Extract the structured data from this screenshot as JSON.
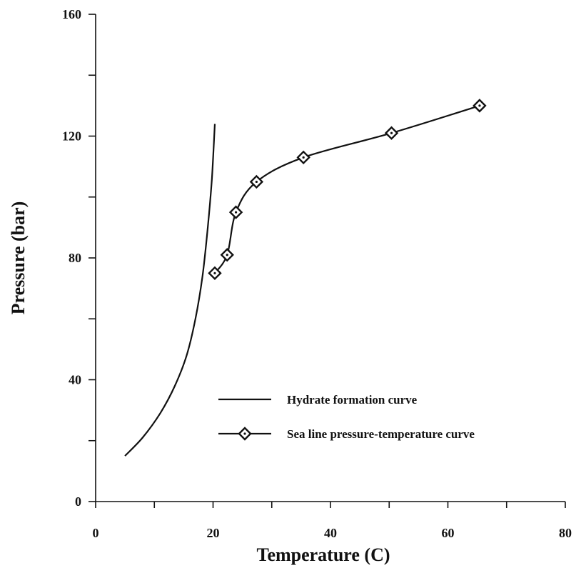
{
  "chart_data": {
    "type": "line",
    "xlabel": "Temperature (C)",
    "ylabel": "Pressure (bar)",
    "xlim": [
      0,
      80
    ],
    "ylim": [
      0,
      160
    ],
    "x_ticks": [
      0,
      20,
      40,
      60,
      80
    ],
    "y_ticks": [
      0,
      40,
      80,
      120,
      160
    ],
    "grid": false,
    "legend_position": "lower-right",
    "series": [
      {
        "name": "Hydrate formation curve",
        "marker": "none",
        "points": [
          [
            5.0,
            15
          ],
          [
            8.0,
            21
          ],
          [
            11.0,
            29
          ],
          [
            13.5,
            38
          ],
          [
            15.5,
            48
          ],
          [
            17.0,
            60
          ],
          [
            18.2,
            74
          ],
          [
            19.1,
            90
          ],
          [
            19.8,
            106
          ],
          [
            20.3,
            124
          ]
        ]
      },
      {
        "name": "Sea line pressure-temperature curve",
        "marker": "diamond",
        "points": [
          [
            20.3,
            75
          ],
          [
            22.4,
            81
          ],
          [
            23.9,
            95
          ],
          [
            27.4,
            105
          ],
          [
            35.4,
            113
          ],
          [
            50.4,
            121
          ],
          [
            65.4,
            130
          ]
        ]
      }
    ]
  }
}
